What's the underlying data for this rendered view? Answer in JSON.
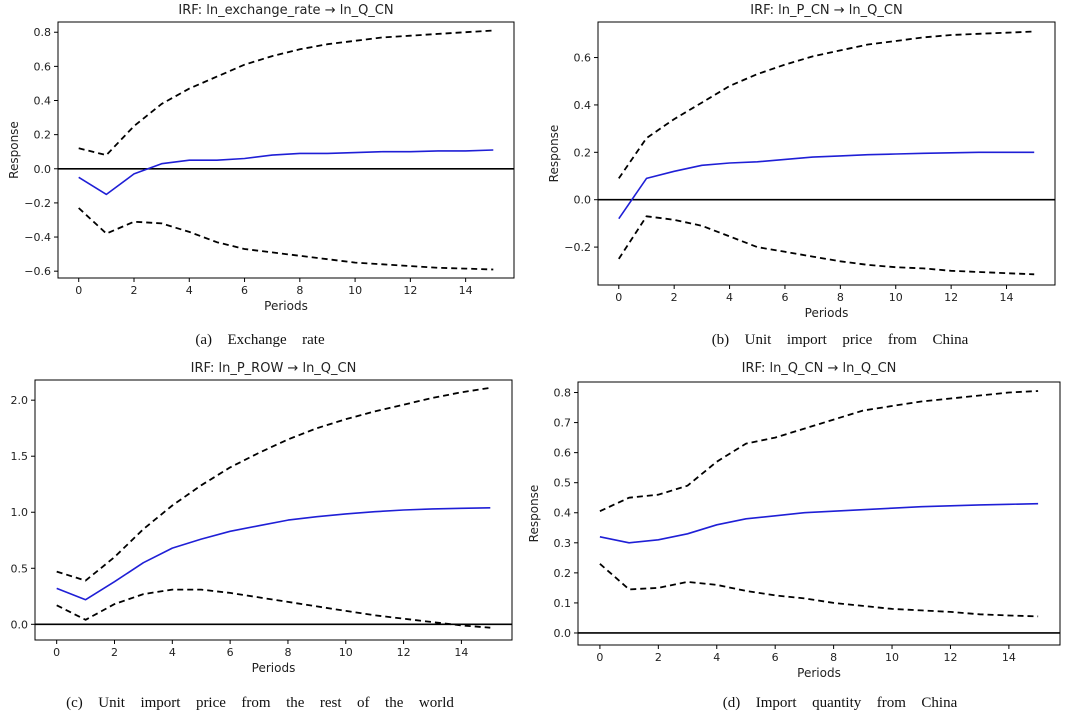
{
  "chart_data": [
    {
      "type": "line",
      "title": "IRF: ln_exchange_rate → ln_Q_CN",
      "xlabel": "Periods",
      "ylabel": "Response",
      "caption": "(a)  Exchange  rate",
      "xlim": [
        -0.75,
        15.75
      ],
      "ylim": [
        -0.64,
        0.86
      ],
      "xticks": [
        0,
        2,
        4,
        6,
        8,
        10,
        12,
        14
      ],
      "xtick_labels": [
        "0",
        "2",
        "4",
        "6",
        "8",
        "10",
        "12",
        "14"
      ],
      "yticks": [
        -0.6,
        -0.4,
        -0.2,
        0.0,
        0.2,
        0.4,
        0.6,
        0.8
      ],
      "ytick_labels": [
        "−0.6",
        "−0.4",
        "−0.2",
        "0.0",
        "0.2",
        "0.4",
        "0.6",
        "0.8"
      ],
      "x": [
        0,
        1,
        2,
        3,
        4,
        5,
        6,
        7,
        8,
        9,
        10,
        11,
        12,
        13,
        14,
        15
      ],
      "series": [
        {
          "role": "response",
          "color": "#1f1fd6",
          "values": [
            -0.05,
            -0.15,
            -0.03,
            0.03,
            0.05,
            0.05,
            0.06,
            0.08,
            0.09,
            0.09,
            0.095,
            0.1,
            0.1,
            0.105,
            0.105,
            0.11
          ]
        },
        {
          "role": "upper",
          "color": "#000000",
          "dashed": true,
          "values": [
            0.12,
            0.08,
            0.25,
            0.38,
            0.47,
            0.54,
            0.61,
            0.66,
            0.7,
            0.73,
            0.75,
            0.77,
            0.78,
            0.79,
            0.8,
            0.81
          ]
        },
        {
          "role": "lower",
          "color": "#000000",
          "dashed": true,
          "values": [
            -0.23,
            -0.38,
            -0.31,
            -0.32,
            -0.37,
            -0.43,
            -0.47,
            -0.49,
            -0.51,
            -0.53,
            -0.55,
            -0.56,
            -0.57,
            -0.58,
            -0.585,
            -0.59
          ]
        }
      ],
      "zero_line": true
    },
    {
      "type": "line",
      "title": "IRF: ln_P_CN → ln_Q_CN",
      "xlabel": "Periods",
      "ylabel": "Response",
      "caption": "(b)  Unit  import  price  from  China",
      "xlim": [
        -0.75,
        15.75
      ],
      "ylim": [
        -0.36,
        0.75
      ],
      "xticks": [
        0,
        2,
        4,
        6,
        8,
        10,
        12,
        14
      ],
      "xtick_labels": [
        "0",
        "2",
        "4",
        "6",
        "8",
        "10",
        "12",
        "14"
      ],
      "yticks": [
        -0.2,
        0.0,
        0.2,
        0.4,
        0.6
      ],
      "ytick_labels": [
        "−0.2",
        "0.0",
        "0.2",
        "0.4",
        "0.6"
      ],
      "x": [
        0,
        1,
        2,
        3,
        4,
        5,
        6,
        7,
        8,
        9,
        10,
        11,
        12,
        13,
        14,
        15
      ],
      "series": [
        {
          "role": "response",
          "color": "#1f1fd6",
          "values": [
            -0.08,
            0.09,
            0.12,
            0.145,
            0.155,
            0.16,
            0.17,
            0.18,
            0.185,
            0.19,
            0.193,
            0.196,
            0.198,
            0.2,
            0.2,
            0.2
          ]
        },
        {
          "role": "upper",
          "color": "#000000",
          "dashed": true,
          "values": [
            0.09,
            0.26,
            0.34,
            0.41,
            0.48,
            0.53,
            0.57,
            0.605,
            0.63,
            0.655,
            0.67,
            0.685,
            0.695,
            0.7,
            0.705,
            0.71
          ]
        },
        {
          "role": "lower",
          "color": "#000000",
          "dashed": true,
          "values": [
            -0.25,
            -0.07,
            -0.085,
            -0.11,
            -0.155,
            -0.2,
            -0.22,
            -0.24,
            -0.26,
            -0.275,
            -0.285,
            -0.29,
            -0.3,
            -0.305,
            -0.31,
            -0.315
          ]
        }
      ],
      "zero_line": true
    },
    {
      "type": "line",
      "title": "IRF: ln_P_ROW → ln_Q_CN",
      "xlabel": "Periods",
      "ylabel": "Response",
      "caption": "(c)  Unit  import  price  from  the  rest  of  the  world",
      "xlim": [
        -0.75,
        15.75
      ],
      "ylim": [
        -0.14,
        2.18
      ],
      "xticks": [
        0,
        2,
        4,
        6,
        8,
        10,
        12,
        14
      ],
      "xtick_labels": [
        "0",
        "2",
        "4",
        "6",
        "8",
        "10",
        "12",
        "14"
      ],
      "yticks": [
        0.0,
        0.5,
        1.0,
        1.5,
        2.0
      ],
      "ytick_labels": [
        "0.0",
        "0.5",
        "1.0",
        "1.5",
        "2.0"
      ],
      "x": [
        0,
        1,
        2,
        3,
        4,
        5,
        6,
        7,
        8,
        9,
        10,
        11,
        12,
        13,
        14,
        15
      ],
      "series": [
        {
          "role": "response",
          "color": "#1f1fd6",
          "values": [
            0.32,
            0.22,
            0.38,
            0.55,
            0.68,
            0.76,
            0.83,
            0.88,
            0.93,
            0.96,
            0.985,
            1.005,
            1.02,
            1.03,
            1.035,
            1.04
          ]
        },
        {
          "role": "upper",
          "color": "#000000",
          "dashed": true,
          "values": [
            0.47,
            0.39,
            0.6,
            0.85,
            1.06,
            1.24,
            1.4,
            1.53,
            1.65,
            1.75,
            1.83,
            1.9,
            1.96,
            2.02,
            2.07,
            2.11
          ]
        },
        {
          "role": "lower",
          "color": "#000000",
          "dashed": true,
          "values": [
            0.17,
            0.04,
            0.18,
            0.27,
            0.31,
            0.31,
            0.28,
            0.24,
            0.2,
            0.16,
            0.12,
            0.08,
            0.05,
            0.02,
            -0.01,
            -0.03
          ]
        }
      ],
      "zero_line": true
    },
    {
      "type": "line",
      "title": "IRF: ln_Q_CN → ln_Q_CN",
      "xlabel": "Periods",
      "ylabel": "Response",
      "caption": "(d)  Import  quantity  from  China",
      "xlim": [
        -0.75,
        15.75
      ],
      "ylim": [
        -0.04,
        0.835
      ],
      "xticks": [
        0,
        2,
        4,
        6,
        8,
        10,
        12,
        14
      ],
      "xtick_labels": [
        "0",
        "2",
        "4",
        "6",
        "8",
        "10",
        "12",
        "14"
      ],
      "yticks": [
        0.0,
        0.1,
        0.2,
        0.3,
        0.4,
        0.5,
        0.6,
        0.7,
        0.8
      ],
      "ytick_labels": [
        "0.0",
        "0.1",
        "0.2",
        "0.3",
        "0.4",
        "0.5",
        "0.6",
        "0.7",
        "0.8"
      ],
      "x": [
        0,
        1,
        2,
        3,
        4,
        5,
        6,
        7,
        8,
        9,
        10,
        11,
        12,
        13,
        14,
        15
      ],
      "series": [
        {
          "role": "response",
          "color": "#1f1fd6",
          "values": [
            0.32,
            0.3,
            0.31,
            0.33,
            0.36,
            0.38,
            0.39,
            0.4,
            0.405,
            0.41,
            0.415,
            0.42,
            0.423,
            0.426,
            0.428,
            0.43
          ]
        },
        {
          "role": "upper",
          "color": "#000000",
          "dashed": true,
          "values": [
            0.405,
            0.45,
            0.46,
            0.49,
            0.57,
            0.63,
            0.65,
            0.68,
            0.71,
            0.74,
            0.755,
            0.77,
            0.78,
            0.79,
            0.8,
            0.805
          ]
        },
        {
          "role": "lower",
          "color": "#000000",
          "dashed": true,
          "values": [
            0.23,
            0.145,
            0.15,
            0.17,
            0.16,
            0.14,
            0.125,
            0.115,
            0.1,
            0.09,
            0.08,
            0.075,
            0.07,
            0.062,
            0.058,
            0.055
          ]
        }
      ],
      "zero_line": true
    }
  ]
}
